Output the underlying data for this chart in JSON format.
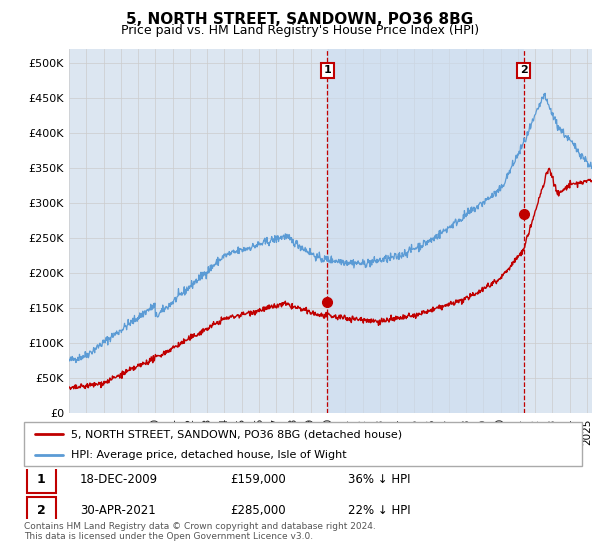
{
  "title": "5, NORTH STREET, SANDOWN, PO36 8BG",
  "subtitle": "Price paid vs. HM Land Registry's House Price Index (HPI)",
  "ylabel_ticks": [
    "£0",
    "£50K",
    "£100K",
    "£150K",
    "£200K",
    "£250K",
    "£300K",
    "£350K",
    "£400K",
    "£450K",
    "£500K"
  ],
  "ylim": [
    0,
    520000
  ],
  "xlim_start": 1995.0,
  "xlim_end": 2025.3,
  "transaction1": {
    "date": "18-DEC-2009",
    "price": 159000,
    "label": "1",
    "x": 2009.96,
    "pct": "36% ↓ HPI"
  },
  "transaction2": {
    "date": "30-APR-2021",
    "price": 285000,
    "label": "2",
    "x": 2021.33,
    "pct": "22% ↓ HPI"
  },
  "legend_line1": "5, NORTH STREET, SANDOWN, PO36 8BG (detached house)",
  "legend_line2": "HPI: Average price, detached house, Isle of Wight",
  "footnote": "Contains HM Land Registry data © Crown copyright and database right 2024.\nThis data is licensed under the Open Government Licence v3.0.",
  "hpi_color": "#5b9bd5",
  "price_color": "#c00000",
  "background_color": "#dce6f1",
  "plot_bg_color": "#ffffff",
  "grid_color": "#cccccc",
  "annotation_box_color": "#c00000",
  "shade_color": "#ccdcf0"
}
